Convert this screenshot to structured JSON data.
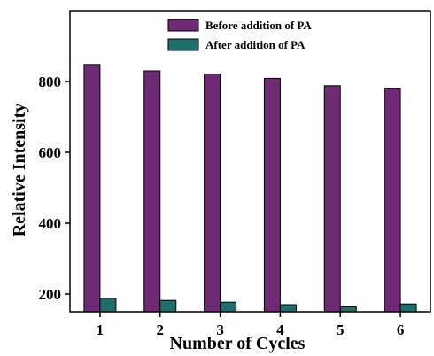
{
  "chart_data": {
    "type": "bar",
    "xlabel": "Number of Cycles",
    "ylabel": "Relative Intensity",
    "categories": [
      "1",
      "2",
      "3",
      "4",
      "5",
      "6"
    ],
    "ylim": [
      150,
      1000
    ],
    "yticks": [
      200,
      400,
      600,
      800
    ],
    "series": [
      {
        "name": "Before addition of PA",
        "color": "#6e2a74",
        "values": [
          848,
          830,
          821,
          809,
          788,
          781
        ]
      },
      {
        "name": "After addition of PA",
        "color": "#1e6e6e",
        "values": [
          188,
          182,
          177,
          170,
          164,
          172
        ]
      }
    ],
    "legend": "top-center",
    "grid": false
  }
}
